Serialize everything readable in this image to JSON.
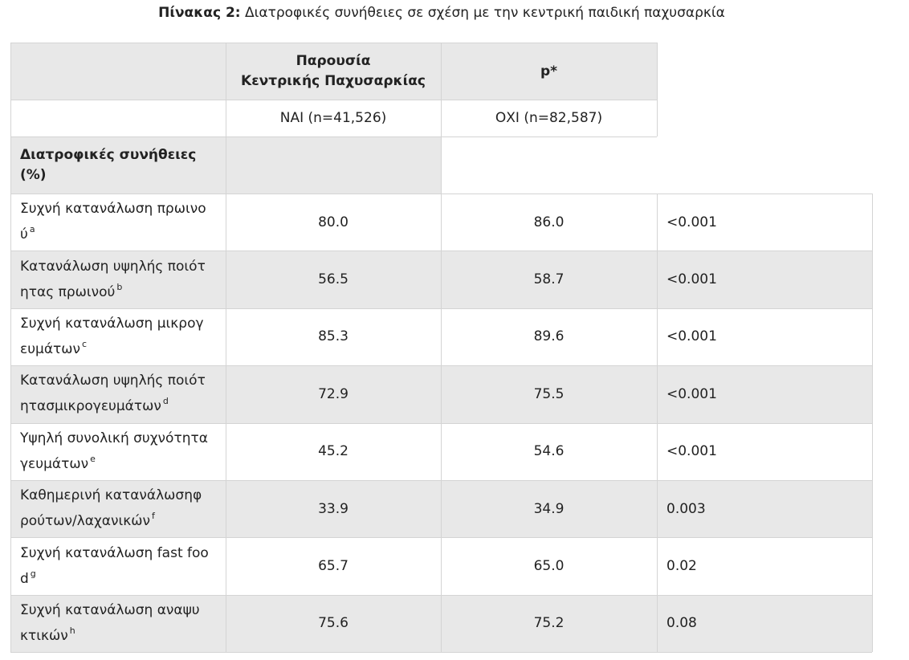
{
  "caption": {
    "label": "Πίνακας 2:",
    "text": "Διατροφικές συνήθειες σε σχέση με την κεντρική παιδική παχυσαρκία"
  },
  "header": {
    "presence_line1": "Παρουσία",
    "presence_line2": "Κεντρικής Παχυσαρκίας",
    "p_label": "p*",
    "yes_label": "ΝΑΙ (n=41,526)",
    "no_label": "ΟΧΙ (n=82,587)",
    "section_line1": "Διατροφικές συνήθειες",
    "section_line2": "(%)"
  },
  "rows": [
    {
      "line1": "Συχνή κατανάλωση πρωινο",
      "line2": "ύ",
      "sup": "a",
      "yes": "80.0",
      "no": "86.0",
      "p": "<0.001"
    },
    {
      "line1": "Κατανάλωση υψηλής ποιότ",
      "line2": "ητας πρωινού",
      "sup": "b",
      "yes": "56.5",
      "no": "58.7",
      "p": "<0.001"
    },
    {
      "line1": "Συχνή κατανάλωση μικρογ",
      "line2": "ευμάτων",
      "sup": "c",
      "yes": "85.3",
      "no": "89.6",
      "p": "<0.001"
    },
    {
      "line1": "Κατανάλωση υψηλής ποιότ",
      "line2": "ητασμικρογευμάτων",
      "sup": "d",
      "yes": "72.9",
      "no": "75.5",
      "p": "<0.001"
    },
    {
      "line1": "Υψηλή συνολική συχνότητα",
      "line2": "γευμάτων",
      "sup": "e",
      "yes": "45.2",
      "no": "54.6",
      "p": "<0.001"
    },
    {
      "line1": "Καθημερινή κατανάλωσηφ",
      "line2": "ρούτων/λαχανικών",
      "sup": "f",
      "yes": "33.9",
      "no": "34.9",
      "p": "0.003"
    },
    {
      "line1": "Συχνή κατανάλωση fast foo",
      "line2": "d",
      "sup": "g",
      "yes": "65.7",
      "no": "65.0",
      "p": "0.02"
    },
    {
      "line1": "Συχνή κατανάλωση αναψυ",
      "line2": "κτικών",
      "sup": "h",
      "yes": "75.6",
      "no": "75.2",
      "p": "0.08"
    }
  ]
}
